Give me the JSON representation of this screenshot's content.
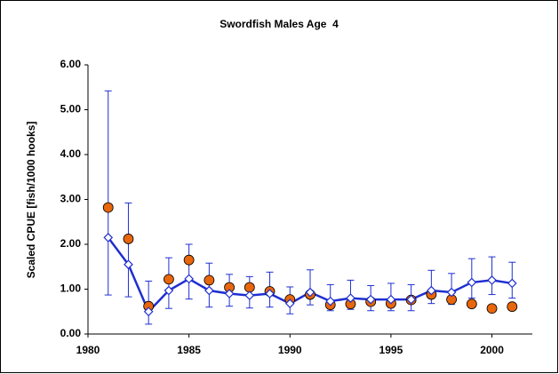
{
  "chart_data": {
    "type": "line",
    "title": "Swordfish Males Age  4",
    "y_label": "Scaled CPUE [fish/1000 hooks]",
    "x": [
      1981,
      1982,
      1983,
      1984,
      1985,
      1986,
      1987,
      1988,
      1989,
      1990,
      1991,
      1992,
      1993,
      1994,
      1995,
      1996,
      1997,
      1998,
      1999,
      2000,
      2001
    ],
    "series": [
      {
        "color": "#e8660c",
        "marker": "circle",
        "line": false,
        "values": [
          2.82,
          2.12,
          0.62,
          1.22,
          1.65,
          1.2,
          1.04,
          1.04,
          0.95,
          0.77,
          0.88,
          0.65,
          0.67,
          0.72,
          0.68,
          0.76,
          0.88,
          0.77,
          0.67,
          0.57,
          0.61
        ]
      },
      {
        "color": "#1f2fd1",
        "marker": "diamond",
        "line": true,
        "values": [
          2.15,
          1.55,
          0.5,
          0.97,
          1.23,
          0.97,
          0.9,
          0.86,
          0.9,
          0.68,
          0.93,
          0.73,
          0.8,
          0.77,
          0.77,
          0.77,
          0.97,
          0.93,
          1.15,
          1.2,
          1.13
        ],
        "lower": [
          0.87,
          0.83,
          0.22,
          0.57,
          0.78,
          0.6,
          0.62,
          0.58,
          0.6,
          0.45,
          0.65,
          0.52,
          0.55,
          0.52,
          0.52,
          0.52,
          0.68,
          0.66,
          0.8,
          0.88,
          0.8
        ],
        "upper": [
          5.42,
          2.92,
          1.18,
          1.7,
          2.0,
          1.58,
          1.33,
          1.28,
          1.38,
          1.05,
          1.43,
          1.1,
          1.2,
          1.08,
          1.13,
          1.1,
          1.42,
          1.35,
          1.68,
          1.72,
          1.6
        ]
      }
    ],
    "xlim": [
      1980,
      2002
    ],
    "xticks": [
      1980,
      1985,
      1990,
      1995,
      2000
    ],
    "ylim": [
      0,
      6
    ],
    "yticks": [
      {
        "value": 0,
        "label": "0.00"
      },
      {
        "value": 1,
        "label": "1.00"
      },
      {
        "value": 2,
        "label": "2.00"
      },
      {
        "value": 3,
        "label": "3.00"
      },
      {
        "value": 4,
        "label": "4.00"
      },
      {
        "value": 5,
        "label": "5.00"
      },
      {
        "value": 6,
        "label": "6.00"
      }
    ],
    "grid": false
  }
}
